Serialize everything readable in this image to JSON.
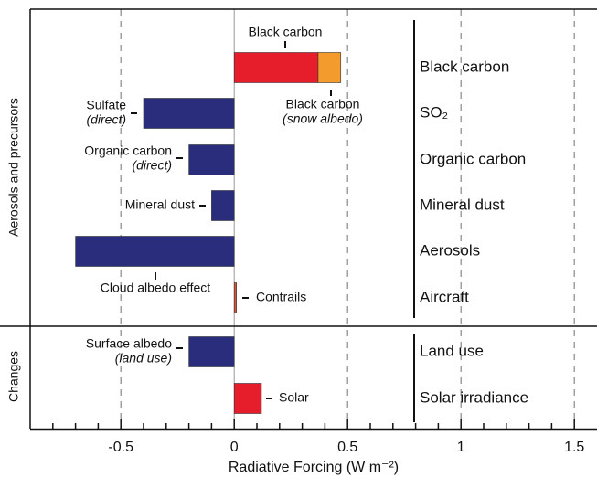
{
  "chart_data": {
    "type": "bar",
    "orientation": "horizontal",
    "x_label": "Radiative Forcing (W m⁻²)",
    "categories": [
      "Black carbon",
      "SO₂",
      "Organic carbon",
      "Mineral dust",
      "Aerosols",
      "Aircraft",
      "Land use",
      "Solar irradiance"
    ],
    "groups": [
      "Aerosols and precursors",
      "Changes"
    ],
    "bars": [
      {
        "label": "Black carbon",
        "row": 0,
        "value": 0.37,
        "color": "#e61e2b"
      },
      {
        "label": "Black carbon",
        "sublabel": "(snow albedo)",
        "row": 0,
        "value": 0.1,
        "color": "#f39b2c"
      },
      {
        "label": "Sulfate",
        "sublabel": "(direct)",
        "row": 1,
        "value": -0.4,
        "color": "#2a2d7c"
      },
      {
        "label": "Organic carbon",
        "sublabel": "(direct)",
        "row": 2,
        "value": -0.2,
        "color": "#2a2d7c"
      },
      {
        "label": "Mineral dust",
        "row": 3,
        "value": -0.1,
        "color": "#2a2d7c"
      },
      {
        "label": "Cloud albedo effect",
        "row": 4,
        "value": -0.7,
        "color": "#2a2d7c"
      },
      {
        "label": "Contrails",
        "row": 5,
        "value": 0.01,
        "color": "#d9533c"
      },
      {
        "label": "Surface albedo",
        "sublabel": "(land use)",
        "row": 6,
        "value": -0.2,
        "color": "#2a2d7c"
      },
      {
        "label": "Solar",
        "row": 7,
        "value": 0.12,
        "color": "#e61e2b"
      }
    ],
    "xlim": [
      -0.9,
      1.6
    ],
    "xticks": [
      -0.5,
      0,
      0.5,
      1,
      1.5
    ],
    "xminorticks": [
      -0.8,
      -0.7,
      -0.6,
      -0.4,
      -0.3,
      -0.2,
      -0.1,
      0.1,
      0.2,
      0.3,
      0.4,
      0.6,
      0.7,
      0.8,
      0.9,
      1.1,
      1.2,
      1.3,
      1.4
    ],
    "grid": "dashed"
  }
}
